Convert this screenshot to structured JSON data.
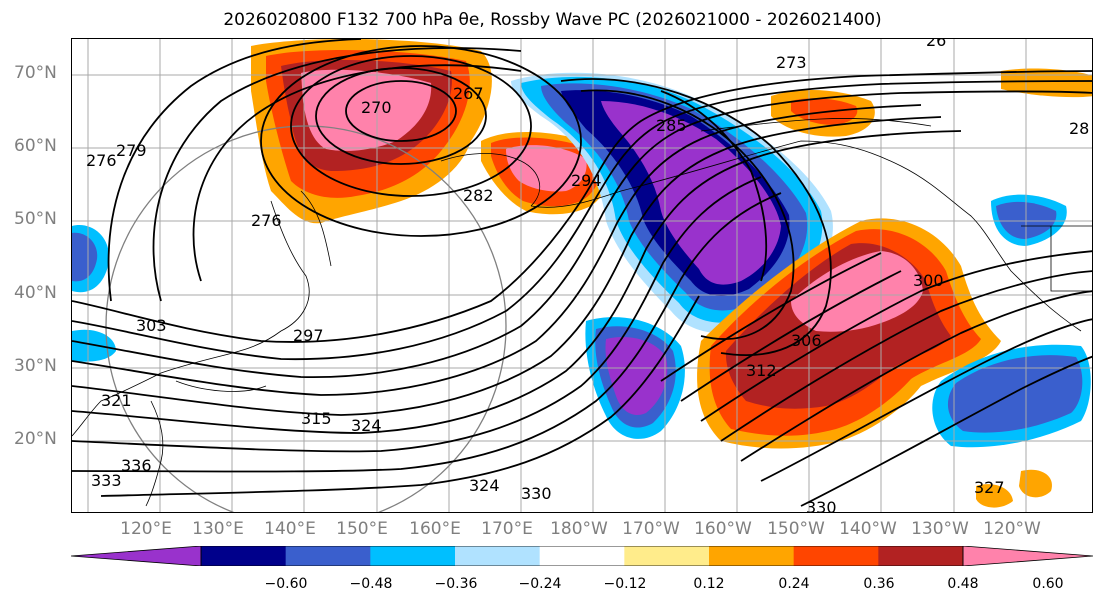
{
  "title": "2026020800 F132 700 hPa θe, Rossby Wave PC (2026021000 - 2026021400)",
  "lat_labels": [
    "70°N",
    "60°N",
    "50°N",
    "40°N",
    "30°N",
    "20°N"
  ],
  "lon_labels": [
    "120°E",
    "130°E",
    "140°E",
    "150°E",
    "160°E",
    "170°E",
    "180°W",
    "170°W",
    "160°W",
    "150°W",
    "140°W",
    "130°W",
    "120°W"
  ],
  "colorbar": {
    "ticks": [
      "−0.60",
      "−0.48",
      "−0.36",
      "−0.24",
      "−0.12",
      "0.12",
      "0.24",
      "0.36",
      "0.48",
      "0.60"
    ],
    "colors": [
      "#9932cc",
      "#00008b",
      "#3a5fcd",
      "#00bfff",
      "#b0e2ff",
      "#ffffff",
      "#ffec8b",
      "#ffa500",
      "#ff4500",
      "#b22222",
      "#ff82ab"
    ]
  },
  "contour_labels": [
    "267",
    "270",
    "273",
    "276",
    "276",
    "279",
    "282",
    "285",
    "294",
    "297",
    "300",
    "303",
    "306",
    "312",
    "315",
    "321",
    "324",
    "324",
    "327",
    "330",
    "330",
    "333",
    "336",
    "28",
    "26"
  ]
}
